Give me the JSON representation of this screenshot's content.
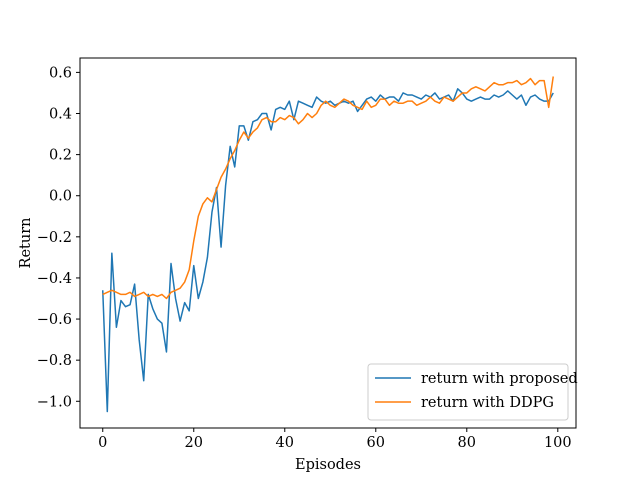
{
  "chart_data": {
    "type": "line",
    "title": "",
    "xlabel": "Episodes",
    "ylabel": "Return",
    "xlim": [
      -5,
      104
    ],
    "ylim": [
      -1.13,
      0.67
    ],
    "xticks": [
      0,
      20,
      40,
      60,
      80,
      100
    ],
    "xtick_labels": [
      "0",
      "20",
      "40",
      "60",
      "80",
      "100"
    ],
    "yticks": [
      -1.0,
      -0.8,
      -0.6,
      -0.4,
      -0.2,
      0.0,
      0.2,
      0.4,
      0.6
    ],
    "ytick_labels": [
      "−1.0",
      "−0.8",
      "−0.6",
      "−0.4",
      "−0.2",
      "0.0",
      "0.2",
      "0.4",
      "0.6"
    ],
    "grid": false,
    "legend": "lower-right",
    "series": [
      {
        "name": "return with proposed",
        "color": "#1f77b4",
        "x": [
          0,
          1,
          2,
          3,
          4,
          5,
          6,
          7,
          8,
          9,
          10,
          11,
          12,
          13,
          14,
          15,
          16,
          17,
          18,
          19,
          20,
          21,
          22,
          23,
          24,
          25,
          26,
          27,
          28,
          29,
          30,
          31,
          32,
          33,
          34,
          35,
          36,
          37,
          38,
          39,
          40,
          41,
          42,
          43,
          44,
          45,
          46,
          47,
          48,
          49,
          50,
          51,
          52,
          53,
          54,
          55,
          56,
          57,
          58,
          59,
          60,
          61,
          62,
          63,
          64,
          65,
          66,
          67,
          68,
          69,
          70,
          71,
          72,
          73,
          74,
          75,
          76,
          77,
          78,
          79,
          80,
          81,
          82,
          83,
          84,
          85,
          86,
          87,
          88,
          89,
          90,
          91,
          92,
          93,
          94,
          95,
          96,
          97,
          98,
          99
        ],
        "values": [
          -0.46,
          -1.05,
          -0.28,
          -0.64,
          -0.51,
          -0.54,
          -0.53,
          -0.43,
          -0.7,
          -0.9,
          -0.48,
          -0.55,
          -0.6,
          -0.62,
          -0.76,
          -0.33,
          -0.5,
          -0.61,
          -0.52,
          -0.56,
          -0.34,
          -0.5,
          -0.42,
          -0.3,
          -0.08,
          0.04,
          -0.25,
          0.05,
          0.24,
          0.14,
          0.34,
          0.34,
          0.27,
          0.36,
          0.37,
          0.4,
          0.4,
          0.32,
          0.42,
          0.43,
          0.42,
          0.46,
          0.37,
          0.46,
          0.45,
          0.44,
          0.43,
          0.48,
          0.46,
          0.45,
          0.46,
          0.44,
          0.45,
          0.46,
          0.45,
          0.46,
          0.41,
          0.44,
          0.47,
          0.48,
          0.46,
          0.49,
          0.47,
          0.48,
          0.48,
          0.46,
          0.5,
          0.49,
          0.49,
          0.48,
          0.47,
          0.49,
          0.48,
          0.5,
          0.47,
          0.48,
          0.49,
          0.46,
          0.52,
          0.5,
          0.47,
          0.46,
          0.47,
          0.48,
          0.47,
          0.47,
          0.49,
          0.48,
          0.49,
          0.51,
          0.49,
          0.47,
          0.49,
          0.44,
          0.48,
          0.49,
          0.47,
          0.46,
          0.46,
          0.5
        ]
      },
      {
        "name": "return with DDPG",
        "color": "#ff7f0e",
        "x": [
          0,
          1,
          2,
          3,
          4,
          5,
          6,
          7,
          8,
          9,
          10,
          11,
          12,
          13,
          14,
          15,
          16,
          17,
          18,
          19,
          20,
          21,
          22,
          23,
          24,
          25,
          26,
          27,
          28,
          29,
          30,
          31,
          32,
          33,
          34,
          35,
          36,
          37,
          38,
          39,
          40,
          41,
          42,
          43,
          44,
          45,
          46,
          47,
          48,
          49,
          50,
          51,
          52,
          53,
          54,
          55,
          56,
          57,
          58,
          59,
          60,
          61,
          62,
          63,
          64,
          65,
          66,
          67,
          68,
          69,
          70,
          71,
          72,
          73,
          74,
          75,
          76,
          77,
          78,
          79,
          80,
          81,
          82,
          83,
          84,
          85,
          86,
          87,
          88,
          89,
          90,
          91,
          92,
          93,
          94,
          95,
          96,
          97,
          98,
          99
        ],
        "values": [
          -0.48,
          -0.47,
          -0.46,
          -0.47,
          -0.48,
          -0.48,
          -0.47,
          -0.49,
          -0.48,
          -0.47,
          -0.49,
          -0.48,
          -0.49,
          -0.48,
          -0.5,
          -0.47,
          -0.46,
          -0.45,
          -0.42,
          -0.36,
          -0.22,
          -0.1,
          -0.04,
          -0.01,
          -0.03,
          0.03,
          0.09,
          0.13,
          0.18,
          0.22,
          0.27,
          0.31,
          0.28,
          0.31,
          0.33,
          0.37,
          0.38,
          0.36,
          0.36,
          0.38,
          0.37,
          0.39,
          0.38,
          0.35,
          0.37,
          0.4,
          0.38,
          0.4,
          0.44,
          0.46,
          0.44,
          0.43,
          0.45,
          0.47,
          0.46,
          0.44,
          0.43,
          0.42,
          0.46,
          0.43,
          0.44,
          0.47,
          0.47,
          0.44,
          0.46,
          0.45,
          0.45,
          0.46,
          0.46,
          0.44,
          0.45,
          0.46,
          0.48,
          0.46,
          0.45,
          0.48,
          0.47,
          0.46,
          0.48,
          0.5,
          0.5,
          0.52,
          0.53,
          0.52,
          0.51,
          0.53,
          0.55,
          0.54,
          0.54,
          0.55,
          0.55,
          0.56,
          0.54,
          0.55,
          0.57,
          0.54,
          0.56,
          0.56,
          0.43,
          0.58
        ]
      }
    ]
  }
}
